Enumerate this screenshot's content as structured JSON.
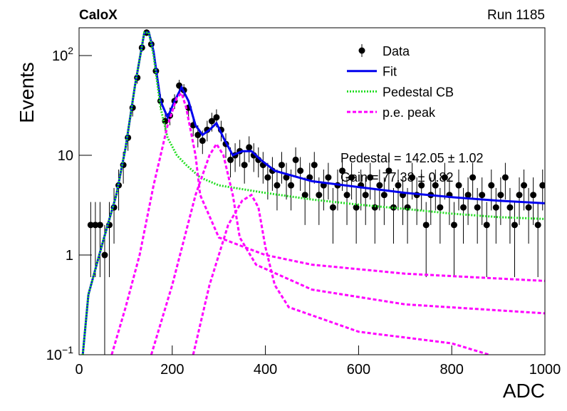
{
  "chart_data": {
    "type": "histfit",
    "title": "CaloX",
    "subtitle": "Run 1185",
    "xlabel": "ADC",
    "ylabel": "Events",
    "xlim": [
      0,
      1000
    ],
    "xticks": [
      0,
      200,
      400,
      600,
      800,
      1000
    ],
    "ylim": [
      0.1,
      190
    ],
    "log_y": true,
    "yticks": [
      {
        "value": 0.1,
        "label": "10",
        "exponent": "−1"
      },
      {
        "value": 1,
        "label": "1"
      },
      {
        "value": 10,
        "label": "10"
      },
      {
        "value": 100,
        "label": "10",
        "exponent": "2"
      }
    ],
    "annotations": [
      "Pedestal = 142.05 ± 1.02",
      "Gain = 77.38 ± 0.82"
    ],
    "series": [
      {
        "name": "Data",
        "color": "#000000",
        "x": [
          5,
          15,
          25,
          35,
          45,
          55,
          65,
          75,
          85,
          95,
          105,
          115,
          125,
          135,
          145,
          155,
          165,
          175,
          185,
          195,
          205,
          215,
          225,
          235,
          245,
          255,
          265,
          275,
          285,
          295,
          305,
          315,
          325,
          335,
          345,
          355,
          365,
          375,
          385,
          395,
          405,
          415,
          425,
          435,
          445,
          455,
          465,
          475,
          485,
          495,
          505,
          515,
          525,
          535,
          545,
          555,
          565,
          575,
          585,
          595,
          605,
          615,
          625,
          635,
          645,
          655,
          665,
          675,
          685,
          695,
          705,
          715,
          725,
          735,
          745,
          755,
          765,
          775,
          785,
          795,
          805,
          815,
          825,
          835,
          845,
          855,
          865,
          875,
          885,
          895,
          905,
          915,
          925,
          935,
          945,
          955,
          965,
          975,
          985,
          995
        ],
        "values": [
          null,
          null,
          2,
          2,
          2,
          1,
          2,
          3,
          5,
          8,
          15,
          30,
          60,
          120,
          170,
          130,
          70,
          35,
          22,
          25,
          35,
          50,
          45,
          30,
          20,
          16,
          14,
          18,
          22,
          24,
          18,
          13,
          9,
          10,
          11,
          8,
          12,
          10,
          9,
          8,
          6,
          7,
          5,
          8,
          6,
          5,
          9,
          7,
          4,
          6,
          8,
          4,
          5,
          6,
          3,
          5,
          7,
          4,
          6,
          3,
          5,
          4,
          6,
          3,
          5,
          4,
          7,
          3,
          5,
          4,
          3,
          6,
          4,
          5,
          2,
          4,
          5,
          3,
          6,
          4,
          2,
          5,
          3,
          4,
          6,
          3,
          4,
          2,
          5,
          3,
          4,
          6,
          3,
          2,
          4,
          5,
          3,
          4,
          2,
          5
        ],
        "errors": [
          null,
          null,
          1.4,
          1.4,
          1.4,
          1,
          1.4,
          1.7,
          2.2,
          2.8,
          3.9,
          5.5,
          7.7,
          11,
          13,
          11.4,
          8.4,
          5.9,
          4.7,
          5,
          5.9,
          7.1,
          6.7,
          5.5,
          4.5,
          4,
          3.7,
          4.2,
          4.7,
          4.9,
          4.2,
          3.6,
          3,
          3.2,
          3.3,
          2.8,
          3.5,
          3.2,
          3,
          2.8,
          2.4,
          2.6,
          2.2,
          2.8,
          2.4,
          2.2,
          3,
          2.6,
          2,
          2.4,
          2.8,
          2,
          2.2,
          2.4,
          1.7,
          2.2,
          2.6,
          2,
          2.4,
          1.7,
          2.2,
          2,
          2.4,
          1.7,
          2.2,
          2,
          2.6,
          1.7,
          2.2,
          2,
          1.7,
          2.4,
          2,
          2.2,
          1.4,
          2,
          2.2,
          1.7,
          2.4,
          2,
          1.4,
          2.2,
          1.7,
          2,
          2.4,
          1.7,
          2,
          1.4,
          2.2,
          1.7,
          2,
          2.4,
          1.7,
          1.4,
          2,
          2.2,
          1.7,
          2,
          1.4,
          2.2
        ]
      },
      {
        "name": "Fit",
        "color": "#0000ee",
        "style": "solid",
        "x": [
          8,
          20,
          50,
          80,
          100,
          120,
          140,
          150,
          160,
          175,
          190,
          205,
          220,
          235,
          250,
          265,
          280,
          295,
          310,
          330,
          350,
          370,
          390,
          420,
          500,
          600,
          700,
          800,
          900,
          1000
        ],
        "values": [
          0.1,
          0.4,
          1.3,
          4,
          12,
          50,
          170,
          170,
          110,
          35,
          24,
          35,
          48,
          35,
          20,
          16,
          18,
          21,
          15,
          10,
          11,
          11,
          9,
          7,
          5.5,
          4.8,
          4.2,
          3.8,
          3.5,
          3.3
        ]
      },
      {
        "name": "Pedestal CB",
        "color": "#22dd22",
        "style": "dotted",
        "x": [
          8,
          20,
          50,
          80,
          100,
          120,
          140,
          150,
          160,
          175,
          190,
          210,
          230,
          260,
          300,
          400,
          500,
          600,
          700,
          800,
          900,
          1000
        ],
        "values": [
          0.1,
          0.4,
          1.3,
          4,
          12,
          50,
          170,
          170,
          100,
          30,
          15,
          10,
          8,
          6,
          5,
          4.2,
          3.6,
          3.2,
          2.9,
          2.6,
          2.4,
          2.3
        ]
      },
      {
        "name": "p.e. peak",
        "color": "#ff00ff",
        "style": "dashed",
        "curves": [
          {
            "x": [
              70,
              100,
              130,
              160,
              190,
              210,
              220,
              230,
              250,
              260,
              300,
              400,
              500,
              700,
              1000
            ],
            "values": [
              0.1,
              0.3,
              1,
              5,
              20,
              38,
              42,
              30,
              10,
              4,
              1.5,
              1,
              0.8,
              0.65,
              0.55
            ]
          },
          {
            "x": [
              155,
              200,
              250,
              280,
              295,
              310,
              330,
              345,
              380,
              500,
              700,
              1000
            ],
            "values": [
              0.1,
              0.5,
              4,
              10,
              13,
              10,
              4,
              1.5,
              0.8,
              0.45,
              0.32,
              0.26
            ]
          },
          {
            "x": [
              245,
              280,
              320,
              350,
              370,
              385,
              400,
              420,
              450,
              600,
              800,
              880
            ],
            "values": [
              0.1,
              0.5,
              2,
              3.5,
              4,
              3,
              1.2,
              0.5,
              0.3,
              0.17,
              0.13,
              0.1
            ]
          }
        ]
      }
    ]
  }
}
